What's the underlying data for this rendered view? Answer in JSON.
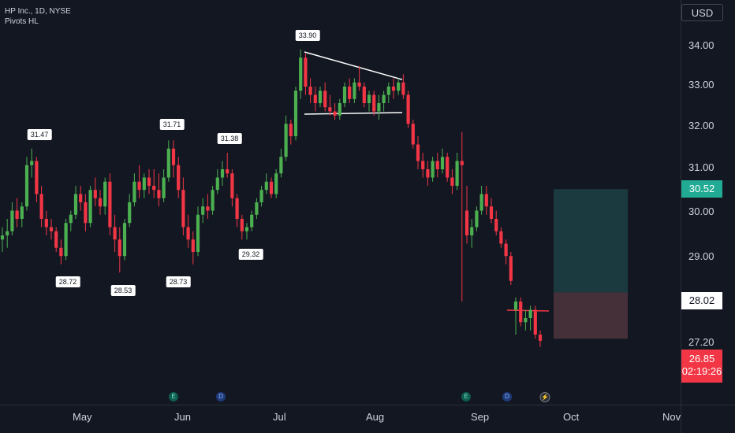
{
  "header": {
    "title": "HP Inc., 1D, NYSE",
    "indicator": "Pivots HL"
  },
  "currency": "USD",
  "chart_data": {
    "type": "candlestick",
    "title": "HP Inc., 1D, NYSE",
    "y_ticks": [
      "34.00",
      "33.00",
      "32.00",
      "31.00",
      "30.00",
      "29.00",
      "27.20"
    ],
    "y_tick_values": [
      34.0,
      33.0,
      32.0,
      31.0,
      30.0,
      29.0,
      27.2
    ],
    "ylim": [
      25.8,
      34.9
    ],
    "x_ticks": [
      "May",
      "Jun",
      "Jul",
      "Aug",
      "Sep",
      "Oct",
      "Nov"
    ],
    "price_tags": {
      "upper": "30.52",
      "entry": "28.02",
      "last_price": "26.85",
      "countdown": "02:19:26"
    },
    "pivots": [
      {
        "label": "31.47",
        "type": "high",
        "value": 31.47
      },
      {
        "label": "28.72",
        "type": "low",
        "value": 28.72
      },
      {
        "label": "28.53",
        "type": "low",
        "value": 28.53
      },
      {
        "label": "31.71",
        "type": "high",
        "value": 31.71
      },
      {
        "label": "28.73",
        "type": "low",
        "value": 28.73
      },
      {
        "label": "31.38",
        "type": "high",
        "value": 31.38
      },
      {
        "label": "29.32",
        "type": "low",
        "value": 29.32
      },
      {
        "label": "33.90",
        "type": "high",
        "value": 33.9
      }
    ],
    "events": [
      {
        "label": "E",
        "kind": "earnings"
      },
      {
        "label": "D",
        "kind": "dividend"
      },
      {
        "label": "E",
        "kind": "earnings"
      },
      {
        "label": "D",
        "kind": "dividend"
      },
      {
        "label": "⚡",
        "kind": "split"
      }
    ],
    "candles": [
      [
        29.3,
        29.6,
        29.0,
        29.4
      ],
      [
        29.4,
        29.8,
        29.1,
        29.5
      ],
      [
        29.5,
        30.2,
        29.4,
        30.0
      ],
      [
        30.0,
        30.3,
        29.6,
        29.8
      ],
      [
        29.8,
        30.2,
        29.6,
        30.1
      ],
      [
        30.1,
        31.3,
        30.0,
        31.1
      ],
      [
        31.1,
        31.5,
        30.8,
        31.2
      ],
      [
        31.2,
        31.3,
        30.2,
        30.4
      ],
      [
        30.4,
        30.6,
        29.6,
        29.8
      ],
      [
        29.8,
        30.0,
        29.4,
        29.6
      ],
      [
        29.6,
        29.8,
        29.3,
        29.5
      ],
      [
        29.5,
        29.6,
        29.0,
        29.1
      ],
      [
        29.1,
        29.3,
        28.7,
        28.9
      ],
      [
        28.9,
        29.8,
        28.8,
        29.7
      ],
      [
        29.7,
        30.0,
        29.5,
        29.9
      ],
      [
        29.9,
        30.6,
        29.8,
        30.4
      ],
      [
        30.4,
        30.6,
        30.0,
        30.2
      ],
      [
        30.2,
        30.4,
        29.5,
        29.7
      ],
      [
        29.7,
        30.6,
        29.6,
        30.5
      ],
      [
        30.5,
        30.8,
        30.1,
        30.3
      ],
      [
        30.3,
        30.5,
        29.9,
        30.1
      ],
      [
        30.1,
        30.8,
        29.9,
        30.7
      ],
      [
        30.7,
        30.9,
        29.4,
        29.6
      ],
      [
        29.6,
        29.9,
        29.0,
        29.3
      ],
      [
        29.3,
        29.6,
        28.5,
        28.9
      ],
      [
        28.9,
        29.8,
        28.8,
        29.7
      ],
      [
        29.7,
        30.4,
        29.6,
        30.2
      ],
      [
        30.2,
        30.9,
        30.1,
        30.7
      ],
      [
        30.7,
        31.1,
        30.3,
        30.5
      ],
      [
        30.5,
        30.9,
        30.3,
        30.8
      ],
      [
        30.8,
        31.0,
        30.4,
        30.6
      ],
      [
        30.6,
        31.0,
        30.3,
        30.5
      ],
      [
        30.5,
        30.9,
        30.1,
        30.3
      ],
      [
        30.3,
        31.0,
        30.2,
        30.8
      ],
      [
        30.8,
        31.7,
        30.7,
        31.5
      ],
      [
        31.5,
        31.7,
        30.8,
        31.1
      ],
      [
        31.1,
        31.3,
        30.3,
        30.5
      ],
      [
        30.5,
        30.8,
        29.4,
        29.6
      ],
      [
        29.6,
        29.9,
        29.1,
        29.3
      ],
      [
        29.3,
        29.5,
        28.7,
        29.0
      ],
      [
        29.0,
        30.1,
        28.9,
        29.9
      ],
      [
        29.9,
        30.3,
        29.7,
        30.1
      ],
      [
        30.1,
        30.4,
        29.8,
        30.0
      ],
      [
        30.0,
        30.6,
        29.9,
        30.5
      ],
      [
        30.5,
        31.0,
        30.4,
        30.8
      ],
      [
        30.8,
        31.2,
        30.6,
        31.0
      ],
      [
        31.0,
        31.4,
        30.8,
        30.9
      ],
      [
        30.9,
        31.0,
        30.1,
        30.3
      ],
      [
        30.3,
        30.4,
        29.6,
        29.8
      ],
      [
        29.8,
        29.9,
        29.3,
        29.5
      ],
      [
        29.5,
        29.7,
        29.3,
        29.6
      ],
      [
        29.6,
        30.0,
        29.5,
        29.9
      ],
      [
        29.9,
        30.3,
        29.8,
        30.2
      ],
      [
        30.2,
        30.6,
        30.1,
        30.5
      ],
      [
        30.5,
        30.9,
        30.4,
        30.7
      ],
      [
        30.7,
        30.8,
        30.3,
        30.4
      ],
      [
        30.4,
        31.0,
        30.3,
        30.9
      ],
      [
        30.9,
        31.5,
        30.8,
        31.3
      ],
      [
        31.3,
        32.3,
        31.2,
        32.1
      ],
      [
        32.1,
        32.2,
        31.6,
        31.8
      ],
      [
        31.8,
        33.0,
        31.7,
        32.9
      ],
      [
        32.9,
        33.9,
        32.7,
        33.7
      ],
      [
        33.7,
        33.8,
        32.8,
        33.0
      ],
      [
        33.0,
        33.2,
        32.6,
        32.8
      ],
      [
        32.8,
        33.0,
        32.4,
        32.6
      ],
      [
        32.6,
        33.0,
        32.5,
        32.9
      ],
      [
        32.9,
        33.1,
        32.4,
        32.5
      ],
      [
        32.5,
        32.8,
        32.3,
        32.4
      ],
      [
        32.4,
        32.6,
        32.2,
        32.3
      ],
      [
        32.3,
        32.7,
        32.2,
        32.6
      ],
      [
        32.6,
        33.1,
        32.5,
        33.0
      ],
      [
        33.0,
        33.2,
        32.6,
        32.7
      ],
      [
        32.7,
        33.2,
        32.6,
        33.1
      ],
      [
        33.1,
        33.5,
        32.9,
        33.0
      ],
      [
        33.0,
        33.1,
        32.5,
        32.6
      ],
      [
        32.6,
        32.9,
        32.4,
        32.8
      ],
      [
        32.8,
        32.9,
        32.3,
        32.4
      ],
      [
        32.4,
        32.8,
        32.2,
        32.6
      ],
      [
        32.6,
        32.9,
        32.4,
        32.8
      ],
      [
        32.8,
        33.1,
        32.6,
        33.0
      ],
      [
        33.0,
        33.2,
        32.7,
        32.9
      ],
      [
        32.9,
        33.2,
        32.8,
        33.1
      ],
      [
        33.1,
        33.3,
        32.7,
        32.8
      ],
      [
        32.8,
        32.9,
        32.0,
        32.1
      ],
      [
        32.1,
        32.2,
        31.5,
        31.6
      ],
      [
        31.6,
        31.8,
        31.0,
        31.2
      ],
      [
        31.2,
        31.4,
        30.8,
        31.0
      ],
      [
        31.0,
        31.2,
        30.6,
        30.8
      ],
      [
        30.8,
        31.3,
        30.7,
        31.2
      ],
      [
        31.2,
        31.4,
        30.8,
        31.0
      ],
      [
        31.0,
        31.5,
        30.9,
        31.3
      ],
      [
        31.3,
        31.4,
        30.7,
        30.8
      ],
      [
        30.8,
        31.0,
        30.4,
        30.6
      ],
      [
        30.6,
        31.4,
        30.5,
        31.2
      ],
      [
        31.2,
        31.9,
        27.8,
        31.1
      ],
      [
        30.0,
        30.6,
        29.2,
        29.4
      ],
      [
        29.4,
        29.8,
        29.1,
        29.6
      ],
      [
        29.6,
        30.1,
        29.5,
        30.0
      ],
      [
        30.0,
        30.6,
        29.9,
        30.4
      ],
      [
        30.4,
        30.6,
        29.9,
        30.1
      ],
      [
        30.1,
        30.3,
        29.7,
        29.8
      ],
      [
        29.8,
        30.0,
        29.4,
        29.5
      ],
      [
        29.5,
        29.6,
        29.1,
        29.2
      ],
      [
        29.2,
        29.3,
        28.7,
        28.9
      ],
      [
        28.9,
        29.0,
        28.2,
        28.3
      ],
      [
        27.6,
        27.9,
        27.0,
        27.8
      ],
      [
        27.8,
        27.9,
        27.2,
        27.3
      ],
      [
        27.3,
        27.6,
        27.1,
        27.4
      ],
      [
        27.4,
        27.7,
        27.1,
        27.6
      ],
      [
        27.6,
        27.7,
        26.9,
        27.0
      ],
      [
        27.0,
        27.1,
        26.7,
        26.85
      ]
    ]
  }
}
